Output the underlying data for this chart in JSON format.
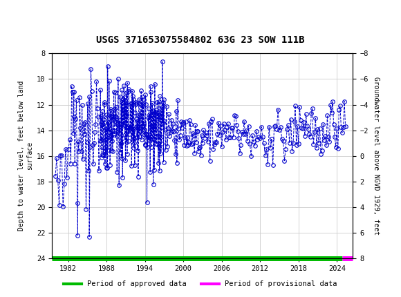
{
  "title": "USGS 371653075584802 63G 23 SOW 111B",
  "ylabel_left": "Depth to water level, feet below land\nsurface",
  "ylabel_right": "Groundwater level above NGVD 1929, feet",
  "ylim_left": [
    24,
    8
  ],
  "ylim_right": [
    8,
    -8
  ],
  "xlim": [
    1979.5,
    2026.5
  ],
  "xticks": [
    1982,
    1988,
    1994,
    2000,
    2006,
    2012,
    2018,
    2024
  ],
  "yticks_left": [
    8,
    10,
    12,
    14,
    16,
    18,
    20,
    22,
    24
  ],
  "yticks_right": [
    8,
    6,
    4,
    2,
    0,
    -2,
    -4,
    -6,
    -8
  ],
  "header_bg": "#1a6b3c",
  "plot_bg": "#ffffff",
  "grid_color": "#cccccc",
  "data_color": "#0000cc",
  "approved_color": "#00bb00",
  "provisional_color": "#ff00ff",
  "legend_approved": "Period of approved data",
  "legend_provisional": "Period of provisional data",
  "marker_size": 4,
  "line_style": "--",
  "line_width": 0.7
}
